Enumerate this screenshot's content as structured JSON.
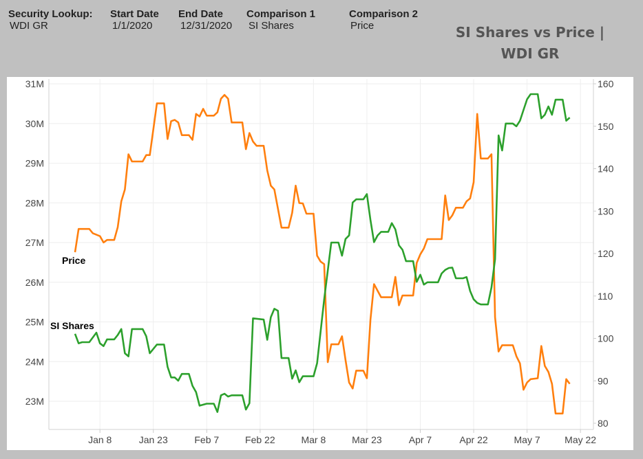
{
  "header": {
    "fields": [
      {
        "label": "Security Lookup:",
        "value": "WDI GR"
      },
      {
        "label": "Start Date",
        "value": "1/1/2020"
      },
      {
        "label": "End Date",
        "value": "12/31/2020"
      },
      {
        "label": "Comparison 1",
        "value": "SI Shares"
      },
      {
        "label": "Comparison 2",
        "value": "Price"
      }
    ],
    "title_line1": "SI Shares vs Price |",
    "title_line2": "WDI GR"
  },
  "chart_data": {
    "type": "line",
    "title": "SI Shares vs Price | WDI GR",
    "x_ticks": [
      "Jan 8",
      "Jan 23",
      "Feb 7",
      "Feb 22",
      "Mar 8",
      "Mar 23",
      "Apr 7",
      "Apr 22",
      "May 7",
      "May 22"
    ],
    "x_tick_dates": [
      "2020-01-08",
      "2020-01-23",
      "2020-02-07",
      "2020-02-22",
      "2020-03-08",
      "2020-03-23",
      "2020-04-07",
      "2020-04-22",
      "2020-05-07",
      "2020-05-22"
    ],
    "y_left_ticks": [
      "31M",
      "30M",
      "29M",
      "28M",
      "27M",
      "26M",
      "25M",
      "24M",
      "23M"
    ],
    "y_left_range_millions": [
      22.7,
      31
    ],
    "y_right_ticks": [
      "160",
      "150",
      "140",
      "130",
      "120",
      "110",
      "100",
      "90",
      "80"
    ],
    "y_right_range": [
      80,
      160
    ],
    "grid": true,
    "series": [
      {
        "name": "Price",
        "axis": "right",
        "color": "#ff7f0e",
        "points": [
          [
            "2020-01-01",
            120.3
          ],
          [
            "2020-01-02",
            125.8
          ],
          [
            "2020-01-05",
            125.8
          ],
          [
            "2020-01-06",
            124.8
          ],
          [
            "2020-01-08",
            124.1
          ],
          [
            "2020-01-09",
            122.6
          ],
          [
            "2020-01-10",
            123.2
          ],
          [
            "2020-01-12",
            123.2
          ],
          [
            "2020-01-13",
            126.2
          ],
          [
            "2020-01-14",
            132.3
          ],
          [
            "2020-01-15",
            135.1
          ],
          [
            "2020-01-16",
            143.4
          ],
          [
            "2020-01-17",
            141.7
          ],
          [
            "2020-01-20",
            141.7
          ],
          [
            "2020-01-21",
            143.2
          ],
          [
            "2020-01-22",
            143.2
          ],
          [
            "2020-01-24",
            155.4
          ],
          [
            "2020-01-26",
            155.4
          ],
          [
            "2020-01-27",
            147.0
          ],
          [
            "2020-01-28",
            151.2
          ],
          [
            "2020-01-29",
            151.5
          ],
          [
            "2020-01-30",
            150.9
          ],
          [
            "2020-01-31",
            147.9
          ],
          [
            "2020-02-02",
            147.9
          ],
          [
            "2020-02-03",
            146.8
          ],
          [
            "2020-02-04",
            152.9
          ],
          [
            "2020-02-05",
            152.3
          ],
          [
            "2020-02-06",
            154.1
          ],
          [
            "2020-02-07",
            152.5
          ],
          [
            "2020-02-09",
            152.5
          ],
          [
            "2020-02-10",
            153.3
          ],
          [
            "2020-02-11",
            156.5
          ],
          [
            "2020-02-12",
            157.4
          ],
          [
            "2020-02-13",
            156.5
          ],
          [
            "2020-02-14",
            150.9
          ],
          [
            "2020-02-17",
            150.9
          ],
          [
            "2020-02-18",
            144.6
          ],
          [
            "2020-02-19",
            148.4
          ],
          [
            "2020-02-20",
            146.4
          ],
          [
            "2020-02-21",
            145.4
          ],
          [
            "2020-02-23",
            145.4
          ],
          [
            "2020-02-24",
            139.6
          ],
          [
            "2020-02-25",
            136.0
          ],
          [
            "2020-02-26",
            135.1
          ],
          [
            "2020-02-28",
            126.1
          ],
          [
            "2020-03-01",
            126.1
          ],
          [
            "2020-03-02",
            129.6
          ],
          [
            "2020-03-03",
            136.0
          ],
          [
            "2020-03-04",
            131.9
          ],
          [
            "2020-03-05",
            131.8
          ],
          [
            "2020-03-06",
            129.4
          ],
          [
            "2020-03-08",
            129.4
          ],
          [
            "2020-03-09",
            119.5
          ],
          [
            "2020-03-10",
            118.1
          ],
          [
            "2020-03-11",
            117.5
          ],
          [
            "2020-03-12",
            94.4
          ],
          [
            "2020-03-13",
            98.6
          ],
          [
            "2020-03-15",
            98.6
          ],
          [
            "2020-03-16",
            100.5
          ],
          [
            "2020-03-17",
            94.9
          ],
          [
            "2020-03-18",
            89.6
          ],
          [
            "2020-03-19",
            88.2
          ],
          [
            "2020-03-20",
            92.4
          ],
          [
            "2020-03-22",
            92.4
          ],
          [
            "2020-03-23",
            90.6
          ],
          [
            "2020-03-24",
            104.4
          ],
          [
            "2020-03-25",
            112.8
          ],
          [
            "2020-03-27",
            109.7
          ],
          [
            "2020-03-30",
            109.7
          ],
          [
            "2020-03-31",
            114.5
          ],
          [
            "2020-04-01",
            107.8
          ],
          [
            "2020-04-02",
            110.1
          ],
          [
            "2020-04-05",
            110.1
          ],
          [
            "2020-04-06",
            117.8
          ],
          [
            "2020-04-07",
            119.8
          ],
          [
            "2020-04-08",
            121.2
          ],
          [
            "2020-04-09",
            123.4
          ],
          [
            "2020-04-13",
            123.4
          ],
          [
            "2020-04-14",
            133.7
          ],
          [
            "2020-04-15",
            127.9
          ],
          [
            "2020-04-16",
            129.0
          ],
          [
            "2020-04-17",
            130.8
          ],
          [
            "2020-04-19",
            130.8
          ],
          [
            "2020-04-20",
            132.3
          ],
          [
            "2020-04-21",
            133.0
          ],
          [
            "2020-04-22",
            136.8
          ],
          [
            "2020-04-23",
            152.9
          ],
          [
            "2020-04-24",
            142.4
          ],
          [
            "2020-04-26",
            142.4
          ],
          [
            "2020-04-27",
            143.4
          ],
          [
            "2020-04-28",
            105.0
          ],
          [
            "2020-04-29",
            96.9
          ],
          [
            "2020-04-30",
            98.4
          ],
          [
            "2020-05-03",
            98.4
          ],
          [
            "2020-05-04",
            95.8
          ],
          [
            "2020-05-05",
            94.1
          ],
          [
            "2020-05-06",
            87.9
          ],
          [
            "2020-05-07",
            89.6
          ],
          [
            "2020-05-08",
            90.4
          ],
          [
            "2020-05-10",
            90.6
          ],
          [
            "2020-05-11",
            98.2
          ],
          [
            "2020-05-12",
            93.5
          ],
          [
            "2020-05-13",
            92.1
          ],
          [
            "2020-05-14",
            89.3
          ],
          [
            "2020-05-15",
            82.3
          ],
          [
            "2020-05-17",
            82.3
          ],
          [
            "2020-05-18",
            90.4
          ],
          [
            "2020-05-19",
            89.3
          ]
        ]
      },
      {
        "name": "SI Shares",
        "axis": "left",
        "unit": "M",
        "color": "#2ca02c",
        "points": [
          [
            "2020-01-01",
            24.7
          ],
          [
            "2020-01-02",
            24.46
          ],
          [
            "2020-01-03",
            24.49
          ],
          [
            "2020-01-05",
            24.49
          ],
          [
            "2020-01-07",
            24.73
          ],
          [
            "2020-01-08",
            24.46
          ],
          [
            "2020-01-09",
            24.39
          ],
          [
            "2020-01-10",
            24.56
          ],
          [
            "2020-01-12",
            24.56
          ],
          [
            "2020-01-13",
            24.67
          ],
          [
            "2020-01-14",
            24.82
          ],
          [
            "2020-01-15",
            24.21
          ],
          [
            "2020-01-16",
            24.13
          ],
          [
            "2020-01-17",
            24.82
          ],
          [
            "2020-01-20",
            24.82
          ],
          [
            "2020-01-21",
            24.64
          ],
          [
            "2020-01-22",
            24.21
          ],
          [
            "2020-01-24",
            24.43
          ],
          [
            "2020-01-26",
            24.43
          ],
          [
            "2020-01-27",
            23.87
          ],
          [
            "2020-01-28",
            23.6
          ],
          [
            "2020-01-29",
            23.6
          ],
          [
            "2020-01-30",
            23.52
          ],
          [
            "2020-01-31",
            23.69
          ],
          [
            "2020-02-02",
            23.69
          ],
          [
            "2020-02-03",
            23.39
          ],
          [
            "2020-02-04",
            23.23
          ],
          [
            "2020-02-05",
            22.89
          ],
          [
            "2020-02-07",
            22.94
          ],
          [
            "2020-02-09",
            22.94
          ],
          [
            "2020-02-10",
            22.73
          ],
          [
            "2020-02-11",
            23.15
          ],
          [
            "2020-02-12",
            23.19
          ],
          [
            "2020-02-13",
            23.12
          ],
          [
            "2020-02-14",
            23.15
          ],
          [
            "2020-02-17",
            23.15
          ],
          [
            "2020-02-18",
            22.79
          ],
          [
            "2020-02-19",
            22.95
          ],
          [
            "2020-02-20",
            25.09
          ],
          [
            "2020-02-23",
            25.06
          ],
          [
            "2020-02-24",
            24.55
          ],
          [
            "2020-02-25",
            25.12
          ],
          [
            "2020-02-26",
            25.33
          ],
          [
            "2020-02-27",
            25.28
          ],
          [
            "2020-02-28",
            24.09
          ],
          [
            "2020-03-01",
            24.09
          ],
          [
            "2020-03-02",
            23.57
          ],
          [
            "2020-03-03",
            23.78
          ],
          [
            "2020-03-04",
            23.48
          ],
          [
            "2020-03-05",
            23.63
          ],
          [
            "2020-03-08",
            23.63
          ],
          [
            "2020-03-09",
            23.96
          ],
          [
            "2020-03-11",
            25.57
          ],
          [
            "2020-03-13",
            27.0
          ],
          [
            "2020-03-15",
            27.0
          ],
          [
            "2020-03-16",
            26.67
          ],
          [
            "2020-03-17",
            27.09
          ],
          [
            "2020-03-18",
            27.18
          ],
          [
            "2020-03-19",
            28.01
          ],
          [
            "2020-03-20",
            28.09
          ],
          [
            "2020-03-22",
            28.09
          ],
          [
            "2020-03-23",
            28.22
          ],
          [
            "2020-03-24",
            27.57
          ],
          [
            "2020-03-25",
            27.01
          ],
          [
            "2020-03-26",
            27.18
          ],
          [
            "2020-03-27",
            27.27
          ],
          [
            "2020-03-29",
            27.27
          ],
          [
            "2020-03-30",
            27.49
          ],
          [
            "2020-03-31",
            27.33
          ],
          [
            "2020-04-01",
            26.93
          ],
          [
            "2020-04-02",
            26.82
          ],
          [
            "2020-04-03",
            26.53
          ],
          [
            "2020-04-05",
            26.53
          ],
          [
            "2020-04-06",
            26.01
          ],
          [
            "2020-04-07",
            26.19
          ],
          [
            "2020-04-08",
            25.94
          ],
          [
            "2020-04-09",
            26.0
          ],
          [
            "2020-04-12",
            26.0
          ],
          [
            "2020-04-13",
            26.22
          ],
          [
            "2020-04-14",
            26.31
          ],
          [
            "2020-04-15",
            26.36
          ],
          [
            "2020-04-16",
            26.37
          ],
          [
            "2020-04-17",
            26.1
          ],
          [
            "2020-04-19",
            26.1
          ],
          [
            "2020-04-20",
            26.13
          ],
          [
            "2020-04-21",
            25.78
          ],
          [
            "2020-04-22",
            25.57
          ],
          [
            "2020-04-23",
            25.48
          ],
          [
            "2020-04-24",
            25.44
          ],
          [
            "2020-04-26",
            25.44
          ],
          [
            "2020-04-27",
            25.87
          ],
          [
            "2020-04-28",
            26.58
          ],
          [
            "2020-04-29",
            29.7
          ],
          [
            "2020-04-30",
            29.32
          ],
          [
            "2020-05-01",
            30.0
          ],
          [
            "2020-05-03",
            30.0
          ],
          [
            "2020-05-04",
            29.93
          ],
          [
            "2020-05-05",
            30.07
          ],
          [
            "2020-05-06",
            30.34
          ],
          [
            "2020-05-07",
            30.61
          ],
          [
            "2020-05-08",
            30.74
          ],
          [
            "2020-05-10",
            30.74
          ],
          [
            "2020-05-11",
            30.13
          ],
          [
            "2020-05-12",
            30.22
          ],
          [
            "2020-05-13",
            30.43
          ],
          [
            "2020-05-14",
            30.22
          ],
          [
            "2020-05-15",
            30.6
          ],
          [
            "2020-05-17",
            30.6
          ],
          [
            "2020-05-18",
            30.07
          ],
          [
            "2020-05-19",
            30.15
          ]
        ]
      }
    ]
  }
}
